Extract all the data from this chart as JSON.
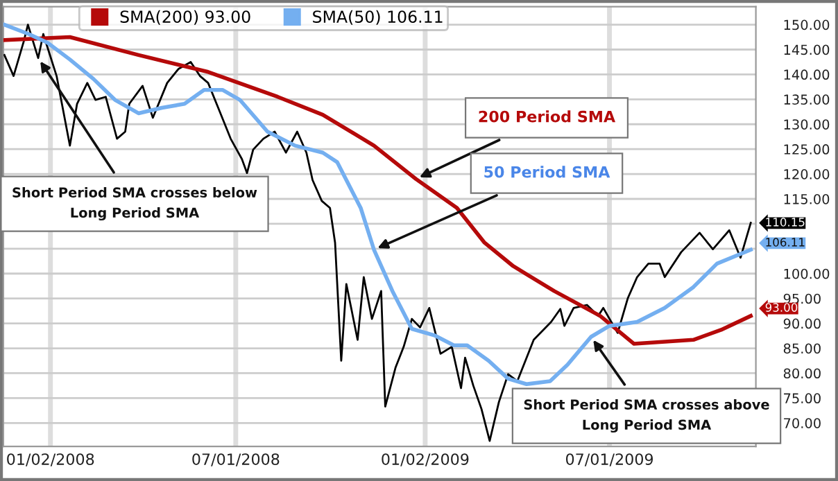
{
  "chart_data": {
    "type": "line",
    "series": [
      {
        "color": "#000000",
        "x": [
          "2007-11-18",
          "2007-11-27",
          "2007-12-07",
          "2007-12-11",
          "2007-12-21",
          "2007-12-26",
          "2008-01-08",
          "2008-01-21",
          "2008-01-28",
          "2008-02-07",
          "2008-02-15",
          "2008-02-25",
          "2008-03-07",
          "2008-03-15",
          "2008-03-19",
          "2008-04-01",
          "2008-04-11",
          "2008-04-25",
          "2008-05-06",
          "2008-05-18",
          "2008-05-27",
          "2008-06-04",
          "2008-06-15",
          "2008-06-26",
          "2008-07-07",
          "2008-07-12",
          "2008-07-18",
          "2008-07-28",
          "2008-08-08",
          "2008-08-19",
          "2008-08-30",
          "2008-09-08",
          "2008-09-14",
          "2008-09-23",
          "2008-10-01",
          "2008-10-06",
          "2008-10-12",
          "2008-10-17",
          "2008-10-28",
          "2008-11-03",
          "2008-11-11",
          "2008-11-20",
          "2008-11-24",
          "2008-12-04",
          "2008-12-12",
          "2008-12-20",
          "2008-12-28",
          "2009-01-06",
          "2009-01-17",
          "2009-01-28",
          "2009-02-06",
          "2009-02-10",
          "2009-02-18",
          "2009-02-26",
          "2009-03-06",
          "2009-03-15",
          "2009-03-24",
          "2009-04-02",
          "2009-04-18",
          "2009-05-05",
          "2009-05-14",
          "2009-05-18",
          "2009-05-27",
          "2009-06-09",
          "2009-06-20",
          "2009-06-25",
          "2009-07-05",
          "2009-07-09",
          "2009-07-19",
          "2009-07-28",
          "2009-08-08",
          "2009-08-19",
          "2009-08-24",
          "2009-09-09",
          "2009-09-27",
          "2009-10-10",
          "2009-10-26",
          "2009-11-06",
          "2009-11-16"
        ],
        "values": [
          143.9,
          139.7,
          146.7,
          150.0,
          143.3,
          148.1,
          139.7,
          125.7,
          134.1,
          138.3,
          134.9,
          135.5,
          127.1,
          128.5,
          134.1,
          137.7,
          131.3,
          138.3,
          141.1,
          142.5,
          139.7,
          138.3,
          132.7,
          127.1,
          123.0,
          120.2,
          124.9,
          127.1,
          128.5,
          124.3,
          128.5,
          124.3,
          118.8,
          114.6,
          113.2,
          106.2,
          82.5,
          97.9,
          86.7,
          99.3,
          90.9,
          96.5,
          73.3,
          81.1,
          85.3,
          90.9,
          89.2,
          93.1,
          83.9,
          85.3,
          77.0,
          83.1,
          77.5,
          72.8,
          66.4,
          74.2,
          79.8,
          78.4,
          86.7,
          90.3,
          92.9,
          89.5,
          93.1,
          93.7,
          91.5,
          93.1,
          89.5,
          88.1,
          95.1,
          99.3,
          102.0,
          102.0,
          99.3,
          104.3,
          108.2,
          104.9,
          108.7,
          103.2,
          110.2
        ]
      },
      {
        "name": "SMA(200) 93.00",
        "color": "#b50a0a",
        "x": [
          "2007-11-18",
          "2008-01-21",
          "2008-03-28",
          "2008-06-04",
          "2008-08-11",
          "2008-09-24",
          "2008-11-13",
          "2008-12-24",
          "2009-02-02",
          "2009-03-01",
          "2009-03-29",
          "2009-05-08",
          "2009-06-22",
          "2009-07-25",
          "2009-09-21",
          "2009-10-18",
          "2009-11-16"
        ],
        "values": [
          146.9,
          147.5,
          143.9,
          140.5,
          135.5,
          131.9,
          125.7,
          119.0,
          113.2,
          106.2,
          101.5,
          96.5,
          91.5,
          85.9,
          86.7,
          88.7,
          91.5
        ]
      },
      {
        "name": "SMA(50) 106.11",
        "color": "#74aff0",
        "x": [
          "2007-11-18",
          "2007-12-12",
          "2007-12-30",
          "2008-01-21",
          "2008-02-13",
          "2008-03-05",
          "2008-03-28",
          "2008-04-20",
          "2008-05-12",
          "2008-05-31",
          "2008-06-18",
          "2008-07-05",
          "2008-08-01",
          "2008-08-28",
          "2008-09-24",
          "2008-10-08",
          "2008-10-31",
          "2008-11-13",
          "2008-12-01",
          "2008-12-20",
          "2009-01-11",
          "2009-01-30",
          "2009-02-12",
          "2009-03-05",
          "2009-03-24",
          "2009-04-11",
          "2009-05-04",
          "2009-05-21",
          "2009-06-13",
          "2009-07-01",
          "2009-07-28",
          "2009-08-24",
          "2009-09-21",
          "2009-10-14",
          "2009-11-16"
        ],
        "values": [
          150.0,
          148.1,
          146.4,
          143.0,
          139.1,
          134.9,
          132.2,
          133.3,
          134.1,
          136.9,
          136.9,
          134.9,
          128.5,
          125.7,
          124.3,
          122.4,
          113.2,
          104.8,
          96.5,
          88.9,
          87.6,
          85.6,
          85.6,
          82.5,
          78.9,
          77.8,
          78.4,
          81.7,
          87.3,
          89.5,
          90.3,
          93.1,
          97.3,
          102.0,
          104.8
        ]
      }
    ],
    "xlim": [
      "2007-11-17",
      "2009-11-21"
    ],
    "xticks": [
      {
        "value": "2008-01-02",
        "label": "01/02/2008"
      },
      {
        "value": "2008-07-01",
        "label": "07/01/2008"
      },
      {
        "value": "2009-01-02",
        "label": "01/02/2009"
      },
      {
        "value": "2009-07-01",
        "label": "07/01/2009"
      }
    ],
    "ylim": [
      65.3,
      153.6
    ],
    "yticks": [
      {
        "value": 70,
        "label": "70.00"
      },
      {
        "value": 75,
        "label": "75.00"
      },
      {
        "value": 80,
        "label": "80.00"
      },
      {
        "value": 85,
        "label": "85.00"
      },
      {
        "value": 90,
        "label": "90.00"
      },
      {
        "value": 95,
        "label": "95.00"
      },
      {
        "value": 100,
        "label": "100.00"
      },
      {
        "value": 105,
        "label": null
      },
      {
        "value": 110,
        "label": null
      },
      {
        "value": 115,
        "label": "115.00"
      },
      {
        "value": 120,
        "label": "120.00"
      },
      {
        "value": 125,
        "label": "125.00"
      },
      {
        "value": 130,
        "label": "130.00"
      },
      {
        "value": 135,
        "label": "135.00"
      },
      {
        "value": 140,
        "label": "140.00"
      },
      {
        "value": 145,
        "label": "145.00"
      },
      {
        "value": 150,
        "label": "150.00"
      }
    ],
    "grid": true,
    "legend": "top",
    "annotations": [
      {
        "text": "Short Period SMA crosses below\nLong Period SMA",
        "x": "2007-12-21",
        "y": 143.3
      },
      {
        "text": "200 Period SMA",
        "x": "2008-12-24",
        "y": 119.0
      },
      {
        "text": "50 Period SMA",
        "x": "2008-11-13",
        "y": 104.8
      },
      {
        "text": "Short Period SMA crosses above\nLong Period SMA",
        "x": "2009-06-13",
        "y": 87.3
      },
      {
        "text": "110.15",
        "x": "2009-11-16",
        "y": 110.15
      },
      {
        "text": "106.11",
        "x": "2009-11-16",
        "y": 106.11
      },
      {
        "text": "93.00",
        "x": "2009-11-16",
        "y": 93.0
      }
    ]
  }
}
